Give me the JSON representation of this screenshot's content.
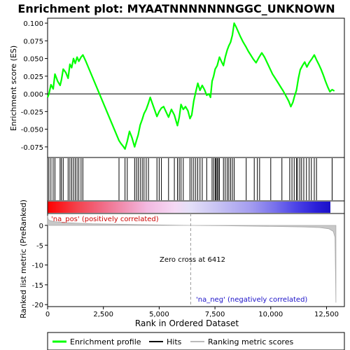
{
  "chart_data": {
    "type": "line",
    "title": "Enrichment plot: MYAATNNNNNNNGGC_UNKNOWN",
    "xlabel": "Rank in Ordered Dataset",
    "xlim": [
      0,
      13300
    ],
    "xticks": [
      0,
      2500,
      5000,
      7500,
      10000,
      12500
    ],
    "xtick_labels": [
      "0",
      "2,500",
      "5,000",
      "7,500",
      "10,000",
      "12,500"
    ],
    "top_panel": {
      "ylabel": "Enrichment score (ES)",
      "ylim": [
        -0.09,
        0.107
      ],
      "yticks": [
        -0.075,
        -0.05,
        -0.025,
        0.0,
        0.025,
        0.05,
        0.075,
        0.1
      ],
      "ytick_labels": [
        "-0.075",
        "-0.050",
        "-0.025",
        "0.000",
        "0.025",
        "0.050",
        "0.075",
        "0.100"
      ],
      "series_name": "Enrichment profile",
      "color": "#00ff00",
      "points": [
        [
          0,
          -0.005
        ],
        [
          60,
          0.0
        ],
        [
          150,
          0.013
        ],
        [
          250,
          0.007
        ],
        [
          330,
          0.028
        ],
        [
          450,
          0.018
        ],
        [
          560,
          0.012
        ],
        [
          620,
          0.02
        ],
        [
          700,
          0.035
        ],
        [
          820,
          0.03
        ],
        [
          920,
          0.022
        ],
        [
          1000,
          0.042
        ],
        [
          1080,
          0.037
        ],
        [
          1160,
          0.05
        ],
        [
          1240,
          0.043
        ],
        [
          1320,
          0.052
        ],
        [
          1400,
          0.046
        ],
        [
          1500,
          0.052
        ],
        [
          1580,
          0.055
        ],
        [
          1700,
          0.047
        ],
        [
          3200,
          -0.066
        ],
        [
          3280,
          -0.07
        ],
        [
          3380,
          -0.074
        ],
        [
          3470,
          -0.078
        ],
        [
          3570,
          -0.067
        ],
        [
          3670,
          -0.053
        ],
        [
          3780,
          -0.062
        ],
        [
          3900,
          -0.075
        ],
        [
          3980,
          -0.066
        ],
        [
          4060,
          -0.058
        ],
        [
          4150,
          -0.044
        ],
        [
          4240,
          -0.036
        ],
        [
          4320,
          -0.028
        ],
        [
          4420,
          -0.022
        ],
        [
          4520,
          -0.013
        ],
        [
          4600,
          -0.005
        ],
        [
          4900,
          -0.032
        ],
        [
          5000,
          -0.025
        ],
        [
          5100,
          -0.02
        ],
        [
          5200,
          -0.018
        ],
        [
          5300,
          -0.025
        ],
        [
          5420,
          -0.033
        ],
        [
          5550,
          -0.022
        ],
        [
          5680,
          -0.03
        ],
        [
          5820,
          -0.045
        ],
        [
          5900,
          -0.033
        ],
        [
          5980,
          -0.015
        ],
        [
          6080,
          -0.022
        ],
        [
          6180,
          -0.018
        ],
        [
          6290,
          -0.024
        ],
        [
          6380,
          -0.035
        ],
        [
          6460,
          -0.03
        ],
        [
          6550,
          -0.01
        ],
        [
          6640,
          0.003
        ],
        [
          6730,
          0.015
        ],
        [
          6830,
          0.005
        ],
        [
          6930,
          0.012
        ],
        [
          7030,
          0.006
        ],
        [
          7130,
          -0.002
        ],
        [
          7230,
          0.0
        ],
        [
          7300,
          -0.005
        ],
        [
          7370,
          0.018
        ],
        [
          7440,
          0.025
        ],
        [
          7510,
          0.035
        ],
        [
          7600,
          0.04
        ],
        [
          7700,
          0.052
        ],
        [
          7800,
          0.045
        ],
        [
          7880,
          0.04
        ],
        [
          7960,
          0.052
        ],
        [
          8050,
          0.062
        ],
        [
          8120,
          0.068
        ],
        [
          8200,
          0.073
        ],
        [
          8280,
          0.083
        ],
        [
          8360,
          0.1
        ],
        [
          8440,
          0.095
        ],
        [
          8540,
          0.088
        ],
        [
          8640,
          0.081
        ],
        [
          8750,
          0.074
        ],
        [
          8880,
          0.067
        ],
        [
          9000,
          0.06
        ],
        [
          9100,
          0.055
        ],
        [
          9220,
          0.049
        ],
        [
          9340,
          0.044
        ],
        [
          9460,
          0.051
        ],
        [
          9600,
          0.058
        ],
        [
          9720,
          0.052
        ],
        [
          9840,
          0.044
        ],
        [
          9960,
          0.036
        ],
        [
          10080,
          0.028
        ],
        [
          10200,
          0.022
        ],
        [
          10320,
          0.016
        ],
        [
          10440,
          0.01
        ],
        [
          10560,
          0.004
        ],
        [
          10680,
          -0.003
        ],
        [
          10800,
          -0.01
        ],
        [
          10900,
          -0.018
        ],
        [
          10990,
          -0.012
        ],
        [
          11060,
          -0.004
        ],
        [
          11150,
          0.005
        ],
        [
          11240,
          0.022
        ],
        [
          11320,
          0.034
        ],
        [
          11420,
          0.04
        ],
        [
          11520,
          0.045
        ],
        [
          11620,
          0.038
        ],
        [
          11720,
          0.044
        ],
        [
          11850,
          0.05
        ],
        [
          11950,
          0.055
        ],
        [
          12050,
          0.048
        ],
        [
          12150,
          0.042
        ],
        [
          12250,
          0.035
        ],
        [
          12350,
          0.027
        ],
        [
          12450,
          0.018
        ],
        [
          12550,
          0.01
        ],
        [
          12650,
          0.003
        ],
        [
          12750,
          0.006
        ],
        [
          12850,
          0.004
        ]
      ],
      "hits": [
        60,
        150,
        250,
        330,
        560,
        620,
        700,
        920,
        1000,
        1080,
        1160,
        1240,
        1320,
        1400,
        1500,
        1580,
        3200,
        3470,
        3570,
        3900,
        3980,
        4060,
        4150,
        4240,
        4320,
        4420,
        4520,
        4900,
        5000,
        5100,
        5420,
        5680,
        5820,
        5900,
        5980,
        6080,
        6380,
        6460,
        6550,
        6640,
        6730,
        6830,
        6930,
        7130,
        7370,
        7440,
        7510,
        7550,
        7600,
        7650,
        7700,
        7880,
        7960,
        8050,
        8120,
        8200,
        8280,
        8360,
        8900,
        9260,
        9400,
        9500,
        10000,
        10500,
        10850,
        10950,
        11050,
        11150,
        11200,
        11300,
        11380,
        11480,
        11600,
        11720,
        11820,
        11950,
        12050,
        12750
      ]
    },
    "bottom_panel": {
      "ylabel": "Ranked list metric (PreRanked)",
      "ylim": [
        -20.5,
        3
      ],
      "yticks": [
        0,
        -5,
        -10,
        -15,
        -20
      ],
      "ytick_labels": [
        "0",
        "-5",
        "-10",
        "-15",
        "-20"
      ],
      "series_name": "Ranking metric scores",
      "points": [
        [
          0,
          2.4
        ],
        [
          30,
          1.5
        ],
        [
          100,
          1.2
        ],
        [
          300,
          0.95
        ],
        [
          800,
          0.7
        ],
        [
          2000,
          0.4
        ],
        [
          4000,
          0.2
        ],
        [
          6412,
          0.0
        ],
        [
          8000,
          -0.1
        ],
        [
          10000,
          -0.25
        ],
        [
          11500,
          -0.4
        ],
        [
          12200,
          -0.55
        ],
        [
          12600,
          -0.85
        ],
        [
          12800,
          -1.5
        ],
        [
          12880,
          -3.0
        ],
        [
          12920,
          -19.5
        ]
      ],
      "zero_cross": 6412,
      "zero_cross_label": "Zero cross at 6412",
      "pos_label": "'na_pos' (positively correlated)",
      "neg_label": "'na_neg' (negatively correlated)"
    },
    "legend": {
      "placement": "bottom",
      "entries": [
        "Enrichment profile",
        "Hits",
        "Ranking metric scores"
      ],
      "colors": [
        "#00ff00",
        "#000000",
        "#bbbbbb"
      ]
    },
    "colorbar": {
      "stops": [
        [
          0,
          "#ff0000"
        ],
        [
          0.1,
          "#f4404a"
        ],
        [
          0.2,
          "#f06e8a"
        ],
        [
          0.35,
          "#f2b8e0"
        ],
        [
          0.45,
          "#f5d9f5"
        ],
        [
          0.5,
          "#e5e0f8"
        ],
        [
          0.6,
          "#c8c3f3"
        ],
        [
          0.72,
          "#a39cef"
        ],
        [
          0.8,
          "#7a73ec"
        ],
        [
          0.88,
          "#4b42e6"
        ],
        [
          0.95,
          "#2a1fd8"
        ],
        [
          1,
          "#1a10c8"
        ]
      ]
    },
    "grid": false
  }
}
